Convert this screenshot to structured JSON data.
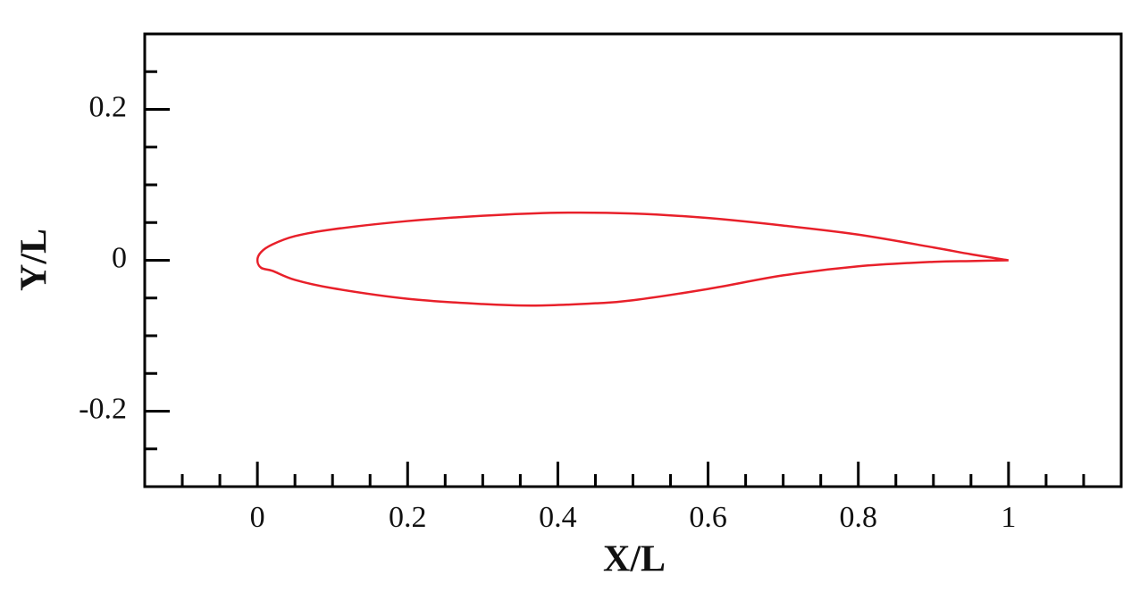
{
  "chart_data": {
    "type": "line",
    "xlabel": "X/L",
    "ylabel": "Y/L",
    "x": [
      1,
      0.95,
      0.9,
      0.8,
      0.7,
      0.6,
      0.5,
      0.4,
      0.3,
      0.2,
      0.1,
      0.05,
      0.02,
      0.005,
      0,
      0.005,
      0.02,
      0.05,
      0.1,
      0.2,
      0.3,
      0.37,
      0.45,
      0.5,
      0.6,
      0.7,
      0.8,
      0.9,
      0.95,
      1
    ],
    "values": [
      0,
      0.008,
      0.017,
      0.034,
      0.046,
      0.056,
      0.062,
      0.063,
      0.059,
      0.052,
      0.041,
      0.032,
      0.021,
      0.011,
      0,
      -0.01,
      -0.014,
      -0.026,
      -0.037,
      -0.051,
      -0.058,
      -0.06,
      -0.057,
      -0.053,
      -0.038,
      -0.02,
      -0.008,
      -0.002,
      -0.001,
      0
    ],
    "color": "#e8202a",
    "xlim": [
      -0.15,
      1.15
    ],
    "ylim": [
      -0.3,
      0.3
    ],
    "xticks": [
      0,
      0.2,
      0.4,
      0.6,
      0.8,
      1
    ],
    "yticks": [
      -0.2,
      0,
      0.2
    ],
    "xminorticks": [
      -0.1,
      -0.05,
      0.05,
      0.1,
      0.15,
      0.25,
      0.3,
      0.35,
      0.45,
      0.5,
      0.55,
      0.65,
      0.7,
      0.75,
      0.85,
      0.9,
      0.95,
      1.05,
      1.1
    ],
    "yminorticks": [
      -0.25,
      -0.15,
      -0.1,
      -0.05,
      0.05,
      0.1,
      0.15,
      0.25
    ]
  }
}
